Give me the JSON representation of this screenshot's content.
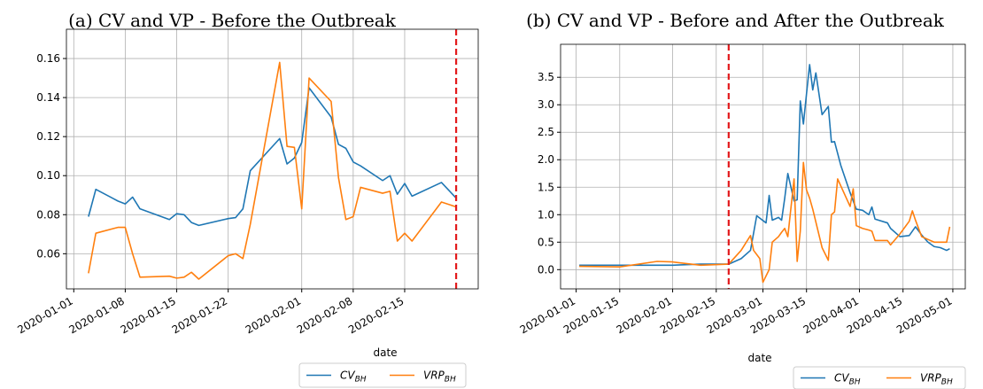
{
  "chart_data": [
    {
      "type": "line",
      "title": "(a) CV and VP - Before the Outbreak",
      "x_label": "date",
      "x": [
        "2020-01-03",
        "2020-01-04",
        "2020-01-07",
        "2020-01-08",
        "2020-01-09",
        "2020-01-10",
        "2020-01-14",
        "2020-01-15",
        "2020-01-16",
        "2020-01-17",
        "2020-01-18",
        "2020-01-22",
        "2020-01-23",
        "2020-01-24",
        "2020-01-25",
        "2020-01-29",
        "2020-01-30",
        "2020-01-31",
        "2020-02-01",
        "2020-02-02",
        "2020-02-05",
        "2020-02-06",
        "2020-02-07",
        "2020-02-08",
        "2020-02-09",
        "2020-02-12",
        "2020-02-13",
        "2020-02-14",
        "2020-02-15",
        "2020-02-16",
        "2020-02-20",
        "2020-02-22"
      ],
      "series": [
        {
          "name": "CV",
          "name_subscript": "BH",
          "color": "#1f77b4",
          "values": [
            0.079,
            0.093,
            0.087,
            0.0855,
            0.089,
            0.083,
            0.0775,
            0.0805,
            0.08,
            0.076,
            0.0745,
            0.078,
            0.0785,
            0.083,
            0.1025,
            0.119,
            0.106,
            0.109,
            0.117,
            0.145,
            0.13,
            0.116,
            0.114,
            0.107,
            0.105,
            0.0975,
            0.1,
            0.0905,
            0.096,
            0.0895,
            0.0965,
            0.0885
          ]
        },
        {
          "name": "VRP",
          "name_subscript": "BH",
          "color": "#ff7f0e",
          "values": [
            0.05,
            0.0705,
            0.0735,
            0.0735,
            0.06,
            0.048,
            0.0485,
            0.0475,
            0.048,
            0.0505,
            0.047,
            0.059,
            0.06,
            0.0575,
            0.075,
            0.158,
            0.115,
            0.1145,
            0.083,
            0.15,
            0.138,
            0.099,
            0.0775,
            0.079,
            0.094,
            0.091,
            0.092,
            0.0665,
            0.0705,
            0.0665,
            0.0865,
            0.084
          ]
        }
      ],
      "xlim": [
        "2019-12-31",
        "2020-02-25"
      ],
      "xticks": [
        "2020-01-01",
        "2020-01-08",
        "2020-01-15",
        "2020-01-22",
        "2020-02-01",
        "2020-02-08",
        "2020-02-15"
      ],
      "ylim": [
        0.042,
        0.175
      ],
      "yticks": [
        0.06,
        0.08,
        {
          "value": 0.1,
          "label": "0.10"
        },
        0.12,
        0.14,
        0.16
      ],
      "grid": true,
      "legend": "lower right",
      "vline": "2020-02-22",
      "vline_color": "#e31a1c"
    },
    {
      "type": "line",
      "title": "(b) CV and VP - Before and After the Outbreak",
      "x_label": "date",
      "series": [
        {
          "name": "CV",
          "name_subscript": "BH",
          "color": "#1f77b4",
          "x": [
            "2020-01-02",
            "2020-01-15",
            "2020-02-01",
            "2020-02-10",
            "2020-02-19",
            "2020-02-23",
            "2020-02-26",
            "2020-02-28",
            "2020-03-02",
            "2020-03-03",
            "2020-03-04",
            "2020-03-06",
            "2020-03-07",
            "2020-03-08",
            "2020-03-09",
            "2020-03-11",
            "2020-03-12",
            "2020-03-13",
            "2020-03-14",
            "2020-03-15",
            "2020-03-16",
            "2020-03-17",
            "2020-03-18",
            "2020-03-20",
            "2020-03-22",
            "2020-03-23",
            "2020-03-24",
            "2020-03-26",
            "2020-03-29",
            "2020-03-31",
            "2020-04-02",
            "2020-04-04",
            "2020-04-05",
            "2020-04-06",
            "2020-04-10",
            "2020-04-11",
            "2020-04-14",
            "2020-04-17",
            "2020-04-19",
            "2020-04-21",
            "2020-04-23",
            "2020-04-25",
            "2020-04-27",
            "2020-04-29",
            "2020-04-30"
          ],
          "values": [
            0.08,
            0.08,
            0.08,
            0.1,
            0.1,
            0.2,
            0.35,
            0.98,
            0.85,
            1.35,
            0.9,
            0.95,
            0.9,
            1.3,
            1.75,
            1.25,
            1.27,
            3.07,
            2.65,
            3.2,
            3.73,
            3.27,
            3.58,
            2.82,
            2.97,
            2.32,
            2.33,
            1.9,
            1.4,
            1.1,
            1.08,
            1.0,
            1.14,
            0.92,
            0.85,
            0.75,
            0.6,
            0.62,
            0.78,
            0.63,
            0.5,
            0.42,
            0.4,
            0.35,
            0.38
          ]
        },
        {
          "name": "VRP",
          "name_subscript": "BH",
          "color": "#ff7f0e",
          "x": [
            "2020-01-02",
            "2020-01-15",
            "2020-01-27",
            "2020-02-01",
            "2020-02-10",
            "2020-02-19",
            "2020-02-23",
            "2020-02-26",
            "2020-02-27",
            "2020-02-29",
            "2020-03-01",
            "2020-03-03",
            "2020-03-04",
            "2020-03-06",
            "2020-03-07",
            "2020-03-08",
            "2020-03-09",
            "2020-03-11",
            "2020-03-12",
            "2020-03-13",
            "2020-03-14",
            "2020-03-15",
            "2020-03-16",
            "2020-03-17",
            "2020-03-20",
            "2020-03-22",
            "2020-03-23",
            "2020-03-24",
            "2020-03-25",
            "2020-03-29",
            "2020-03-30",
            "2020-03-31",
            "2020-04-02",
            "2020-04-04",
            "2020-04-05",
            "2020-04-06",
            "2020-04-10",
            "2020-04-11",
            "2020-04-14",
            "2020-04-17",
            "2020-04-18",
            "2020-04-19",
            "2020-04-21",
            "2020-04-23",
            "2020-04-25",
            "2020-04-27",
            "2020-04-29",
            "2020-04-30"
          ],
          "values": [
            0.06,
            0.05,
            0.15,
            0.14,
            0.08,
            0.1,
            0.35,
            0.62,
            0.35,
            0.2,
            -0.23,
            0.0,
            0.5,
            0.6,
            0.68,
            0.75,
            0.6,
            1.65,
            0.15,
            0.7,
            1.95,
            1.45,
            1.3,
            1.1,
            0.4,
            0.17,
            1.0,
            1.05,
            1.65,
            1.15,
            1.47,
            0.8,
            0.75,
            0.72,
            0.7,
            0.53,
            0.53,
            0.45,
            0.65,
            0.88,
            1.07,
            0.9,
            0.6,
            0.55,
            0.5,
            0.5,
            0.5,
            0.78
          ]
        }
      ],
      "xlim": [
        "2019-12-27",
        "2020-05-05"
      ],
      "xticks": [
        "2020-01-01",
        "2020-01-15",
        "2020-02-01",
        "2020-02-15",
        "2020-03-01",
        "2020-03-15",
        "2020-04-01",
        "2020-04-15",
        "2020-05-01"
      ],
      "ylim": [
        -0.35,
        4.1
      ],
      "yticks": [
        {
          "value": 0,
          "label": "0.0"
        },
        0.5,
        {
          "value": 1,
          "label": "1.0"
        },
        1.5,
        {
          "value": 2,
          "label": "2.0"
        },
        2.5,
        {
          "value": 3,
          "label": "3.0"
        },
        3.5
      ],
      "grid": true,
      "legend": "lower right",
      "vline": "2020-02-19",
      "vline_color": "#e31a1c"
    }
  ]
}
